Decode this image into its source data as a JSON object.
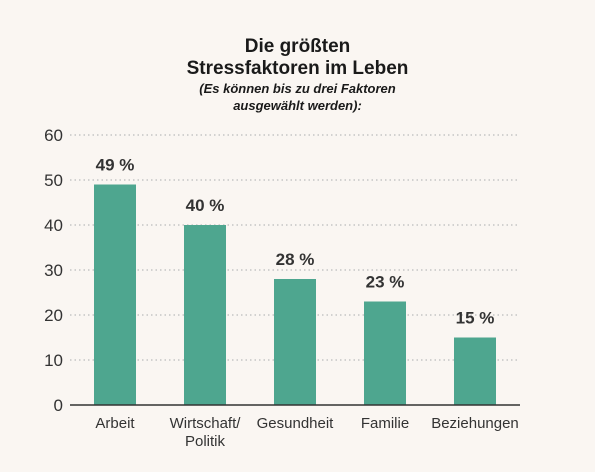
{
  "chart_data": {
    "type": "bar",
    "title_lines": [
      "Die größten",
      "Stressfaktoren im Leben"
    ],
    "subtitle_lines": [
      "(Es können bis zu drei Faktoren",
      "ausgewählt werden):"
    ],
    "categories": [
      [
        "Arbeit"
      ],
      [
        "Wirtschaft/",
        "Politik"
      ],
      [
        "Gesundheit"
      ],
      [
        "Familie"
      ],
      [
        "Beziehungen"
      ]
    ],
    "values": [
      49,
      40,
      28,
      23,
      15
    ],
    "data_labels": [
      "49 %",
      "40 %",
      "28 %",
      "23 %",
      "15 %"
    ],
    "ylim": [
      0,
      60
    ],
    "yticks": [
      0,
      10,
      20,
      30,
      40,
      50,
      60
    ],
    "grid": "horizontal-dotted",
    "bar_color": "#4ea68f",
    "grid_color": "#bbbbbb",
    "axis_color": "#333333"
  }
}
